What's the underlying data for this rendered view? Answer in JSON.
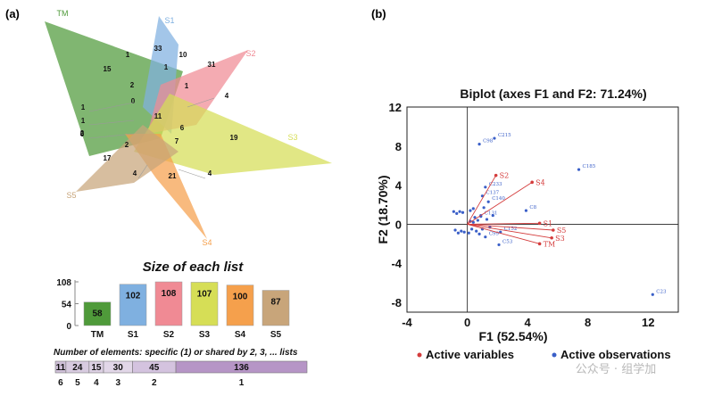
{
  "panel_a": {
    "label": "(a)",
    "set_names": [
      "TM",
      "S1",
      "S2",
      "S3",
      "S4",
      "S5"
    ],
    "set_colors": [
      "#4f9a3a",
      "#7fb0e0",
      "#f08a94",
      "#d6de56",
      "#f5a04c",
      "#c8a57a"
    ],
    "venn_counts": [
      "33",
      "10",
      "1",
      "15",
      "1",
      "31",
      "2",
      "1",
      "0",
      "4",
      "1",
      "11",
      "6",
      "1",
      "0",
      "2",
      "19",
      "2",
      "7",
      "17",
      "4",
      "21",
      "4"
    ],
    "size_title": "Size of each list",
    "bars": {
      "categories": [
        "TM",
        "S1",
        "S2",
        "S3",
        "S4",
        "S5"
      ],
      "values": [
        58,
        102,
        108,
        107,
        100,
        87
      ],
      "yticks": [
        "108",
        "54",
        "0"
      ]
    },
    "shared_title": "Number of elements: specific (1) or shared by 2, 3, ... lists",
    "shared": {
      "counts": [
        "11",
        "24",
        "15",
        "30",
        "45",
        "136"
      ],
      "lists": [
        "6",
        "5",
        "4",
        "3",
        "2",
        "1"
      ]
    }
  },
  "panel_b": {
    "label": "(b)",
    "title": "Biplot (axes F1 and F2: 71.24%)",
    "xlabel": "F1 (52.54%)",
    "ylabel": "F2 (18.70%)",
    "legend": [
      "Active variables",
      "Active observations"
    ],
    "watermark": "公众号 · 组学加"
  },
  "chart_data": [
    {
      "type": "bar",
      "title": "Size of each list",
      "categories": [
        "TM",
        "S1",
        "S2",
        "S3",
        "S4",
        "S5"
      ],
      "values": [
        58,
        102,
        108,
        107,
        100,
        87
      ],
      "ylim": [
        0,
        108
      ]
    },
    {
      "type": "bar",
      "title": "Number of elements: specific (1) or shared by 2, 3, ... lists",
      "categories": [
        "6",
        "5",
        "4",
        "3",
        "2",
        "1"
      ],
      "values": [
        11,
        24,
        15,
        30,
        45,
        136
      ]
    },
    {
      "type": "scatter",
      "title": "Biplot (axes F1 and F2: 71.24%)",
      "xlabel": "F1 (52.54%)",
      "ylabel": "F2 (18.70%)",
      "xlim": [
        -4,
        14
      ],
      "ylim": [
        -9,
        12
      ],
      "xticks": [
        "-4",
        "0",
        "4",
        "8",
        "12"
      ],
      "yticks": [
        "12",
        "8",
        "4",
        "0",
        "-4",
        "-8"
      ],
      "variables": [
        {
          "name": "S2",
          "x": 1.9,
          "y": 5.0
        },
        {
          "name": "S4",
          "x": 4.3,
          "y": 4.3
        },
        {
          "name": "S1",
          "x": 4.8,
          "y": 0.1
        },
        {
          "name": "S5",
          "x": 5.7,
          "y": -0.6
        },
        {
          "name": "S3",
          "x": 5.6,
          "y": -1.4
        },
        {
          "name": "TM",
          "x": 4.8,
          "y": -2.0
        }
      ],
      "observations": [
        {
          "name": "C215",
          "x": 1.8,
          "y": 8.8
        },
        {
          "name": "C98",
          "x": 0.8,
          "y": 8.2
        },
        {
          "name": "C185",
          "x": 7.4,
          "y": 5.6
        },
        {
          "name": "C233",
          "x": 1.2,
          "y": 3.8
        },
        {
          "name": "C137",
          "x": 1.0,
          "y": 2.9
        },
        {
          "name": "C140",
          "x": 1.4,
          "y": 2.3
        },
        {
          "name": "C8",
          "x": 3.9,
          "y": 1.4
        },
        {
          "name": "C131",
          "x": 0.9,
          "y": 0.8
        },
        {
          "name": "C152",
          "x": 2.2,
          "y": -0.8
        },
        {
          "name": "C99",
          "x": 1.2,
          "y": -1.3
        },
        {
          "name": "C53",
          "x": 2.1,
          "y": -2.1
        },
        {
          "name": "C23",
          "x": 12.3,
          "y": -7.2
        }
      ],
      "legend": [
        "Active variables",
        "Active observations"
      ],
      "legend_placement": "bottom",
      "colors": {
        "variables": "#d43c3c",
        "observations": "#3a5fc8"
      }
    }
  ]
}
